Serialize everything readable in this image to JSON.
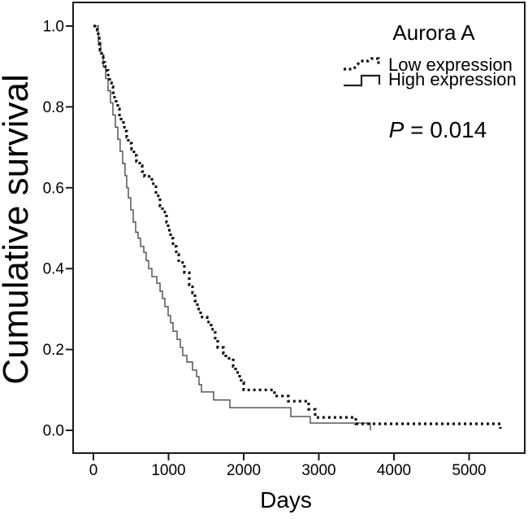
{
  "figure": {
    "title": "Aurora A",
    "p_value_italic": "P",
    "p_value_rest": " = 0.014",
    "x_axis": {
      "label": "Days",
      "ticks": [
        "0",
        "1000",
        "2000",
        "3000",
        "4000",
        "5000"
      ]
    },
    "y_axis": {
      "label": "Cumulative survival",
      "ticks": [
        "1.0",
        "0.8",
        "0.6",
        "0.4",
        "0.2",
        "0.0"
      ]
    },
    "legend": {
      "low_label": "Low expression",
      "high_label": "High expression"
    }
  },
  "colors": {
    "background": "#ffffff",
    "axis": "#1a1a1a",
    "low_curve": "#0d0d0d",
    "high_curve": "#4a4a4a"
  },
  "chart_data": {
    "type": "line",
    "subtype": "kaplan_meier_step",
    "title": "Aurora A",
    "xlabel": "Days",
    "ylabel": "Cumulative survival",
    "annotation": "P = 0.014",
    "legend_position": "upper right",
    "grid": false,
    "xlim": [
      -280,
      5760
    ],
    "ylim": [
      -0.056,
      1.058
    ],
    "x_ticks": [
      0,
      1000,
      2000,
      3000,
      4000,
      5000
    ],
    "y_ticks": [
      0.0,
      0.2,
      0.4,
      0.6,
      0.8,
      1.0
    ],
    "series": [
      {
        "name": "High expression",
        "line_style": "solid",
        "color": "#4a4a4a",
        "points": [
          [
            0,
            1.0
          ],
          [
            65,
            0.96
          ],
          [
            97,
            0.93
          ],
          [
            130,
            0.9
          ],
          [
            162,
            0.87
          ],
          [
            195,
            0.84
          ],
          [
            227,
            0.81
          ],
          [
            259,
            0.78
          ],
          [
            292,
            0.75
          ],
          [
            324,
            0.72
          ],
          [
            356,
            0.69
          ],
          [
            389,
            0.66
          ],
          [
            421,
            0.63
          ],
          [
            443,
            0.6
          ],
          [
            465,
            0.575
          ],
          [
            497,
            0.545
          ],
          [
            530,
            0.515
          ],
          [
            562,
            0.49
          ],
          [
            595,
            0.475
          ],
          [
            627,
            0.455
          ],
          [
            670,
            0.44
          ],
          [
            703,
            0.42
          ],
          [
            735,
            0.4
          ],
          [
            778,
            0.38
          ],
          [
            843,
            0.364
          ],
          [
            886,
            0.344
          ],
          [
            919,
            0.326
          ],
          [
            951,
            0.306
          ],
          [
            995,
            0.284
          ],
          [
            1027,
            0.266
          ],
          [
            1059,
            0.245
          ],
          [
            1113,
            0.225
          ],
          [
            1157,
            0.205
          ],
          [
            1189,
            0.185
          ],
          [
            1243,
            0.169
          ],
          [
            1319,
            0.149
          ],
          [
            1373,
            0.133
          ],
          [
            1405,
            0.113
          ],
          [
            1438,
            0.095
          ],
          [
            1600,
            0.075
          ],
          [
            1816,
            0.056
          ],
          [
            2627,
            0.034
          ],
          [
            2886,
            0.018
          ],
          [
            3686,
            0.0
          ]
        ]
      },
      {
        "name": "Low expression",
        "line_style": "dashed",
        "color": "#0d0d0d",
        "points": [
          [
            0,
            1.0
          ],
          [
            50,
            0.99
          ],
          [
            65,
            0.97
          ],
          [
            78,
            0.955
          ],
          [
            88,
            0.94
          ],
          [
            108,
            0.925
          ],
          [
            130,
            0.91
          ],
          [
            150,
            0.9
          ],
          [
            185,
            0.89
          ],
          [
            197,
            0.875
          ],
          [
            216,
            0.86
          ],
          [
            240,
            0.85
          ],
          [
            260,
            0.835
          ],
          [
            281,
            0.82
          ],
          [
            303,
            0.81
          ],
          [
            324,
            0.795
          ],
          [
            346,
            0.78
          ],
          [
            368,
            0.77
          ],
          [
            400,
            0.755
          ],
          [
            412,
            0.74
          ],
          [
            443,
            0.725
          ],
          [
            465,
            0.71
          ],
          [
            508,
            0.695
          ],
          [
            540,
            0.68
          ],
          [
            573,
            0.665
          ],
          [
            616,
            0.655
          ],
          [
            649,
            0.64
          ],
          [
            681,
            0.628
          ],
          [
            778,
            0.61
          ],
          [
            832,
            0.58
          ],
          [
            886,
            0.555
          ],
          [
            919,
            0.54
          ],
          [
            973,
            0.515
          ],
          [
            995,
            0.495
          ],
          [
            1027,
            0.475
          ],
          [
            1059,
            0.455
          ],
          [
            1103,
            0.435
          ],
          [
            1135,
            0.415
          ],
          [
            1211,
            0.39
          ],
          [
            1276,
            0.36
          ],
          [
            1319,
            0.34
          ],
          [
            1351,
            0.32
          ],
          [
            1384,
            0.3
          ],
          [
            1427,
            0.28
          ],
          [
            1513,
            0.268
          ],
          [
            1567,
            0.25
          ],
          [
            1621,
            0.225
          ],
          [
            1654,
            0.205
          ],
          [
            1730,
            0.19
          ],
          [
            1762,
            0.178
          ],
          [
            1860,
            0.158
          ],
          [
            1892,
            0.143
          ],
          [
            1946,
            0.13
          ],
          [
            1967,
            0.118
          ],
          [
            2000,
            0.1
          ],
          [
            2410,
            0.085
          ],
          [
            2594,
            0.072
          ],
          [
            2865,
            0.052
          ],
          [
            2951,
            0.032
          ],
          [
            3492,
            0.016
          ],
          [
            5416,
            0.004
          ]
        ]
      }
    ]
  }
}
